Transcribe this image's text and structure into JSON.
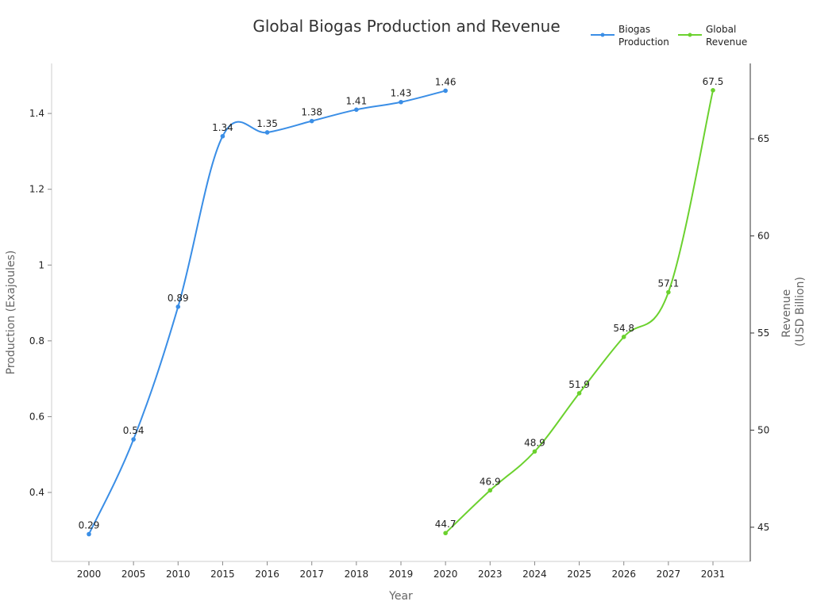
{
  "chart_data": {
    "type": "line",
    "title": "Global Biogas Production and Revenue",
    "xlabel": "Year",
    "ylabel": "Production (Exajoules)",
    "y2label": [
      "Revenue",
      "(USD Billion)"
    ],
    "categories": [
      "2000",
      "2005",
      "2010",
      "2015",
      "2016",
      "2017",
      "2018",
      "2019",
      "2020",
      "2023",
      "2024",
      "2025",
      "2026",
      "2027",
      "2031"
    ],
    "ylim": [
      0.218,
      1.532
    ],
    "y2lim": [
      43.24,
      68.88
    ],
    "yticks": [
      0.4,
      0.6,
      0.8,
      1,
      1.2,
      1.4
    ],
    "y2ticks": [
      45,
      50,
      55,
      60,
      65
    ],
    "legend_position": "top-right",
    "grid": false,
    "series": [
      {
        "name": "Biogas Production",
        "axis": "left",
        "color": "#3a8ee6",
        "x": [
          "2000",
          "2005",
          "2010",
          "2015",
          "2016",
          "2017",
          "2018",
          "2019",
          "2020"
        ],
        "values": [
          0.29,
          0.54,
          0.89,
          1.34,
          1.35,
          1.38,
          1.41,
          1.43,
          1.46
        ]
      },
      {
        "name": "Global Revenue",
        "axis": "right",
        "color": "#6bd12e",
        "x": [
          "2020",
          "2023",
          "2024",
          "2025",
          "2026",
          "2027",
          "2031"
        ],
        "values": [
          44.7,
          46.9,
          48.9,
          51.9,
          54.8,
          57.1,
          67.5
        ]
      }
    ],
    "legend": [
      {
        "lines": [
          "Biogas",
          "Production"
        ]
      },
      {
        "lines": [
          "Global",
          "Revenue"
        ]
      }
    ]
  }
}
